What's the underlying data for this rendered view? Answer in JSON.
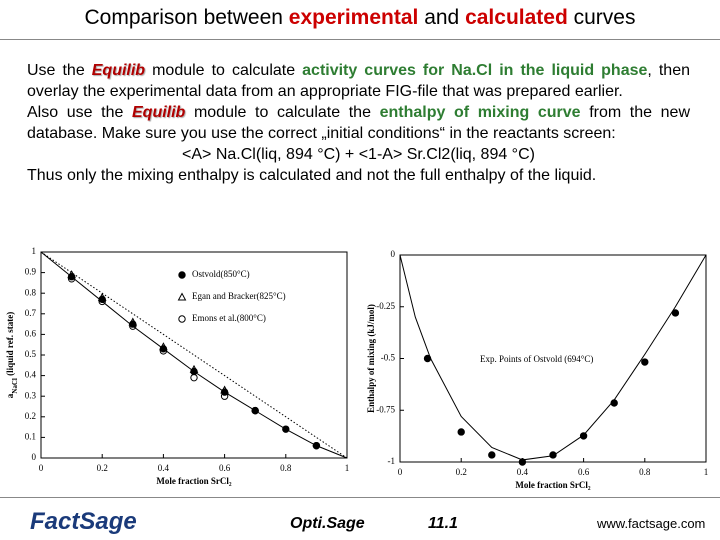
{
  "title": [
    "Comparison between ",
    "experimental",
    " and ",
    "calculated",
    " curves"
  ],
  "body": {
    "p1": [
      "Use the ",
      "Equilib",
      " module to calculate ",
      "activity curves for Na.Cl in the liquid phase",
      ", then overlay the experimental data from an appropriate FIG-file that was prepared earlier."
    ],
    "p2": [
      "Also use the ",
      "Equilib",
      " module to calculate the ",
      "enthalpy of mixing curve",
      " from the new database. Make sure you use the correct „initial conditions“ in the reactants screen:"
    ],
    "p3": "<A> Na.Cl(liq, 894 °C) + <1-A> Sr.Cl2(liq, 894 °C)",
    "p4": "Thus only the mixing enthalpy is calculated and not the full enthalpy of the liquid."
  },
  "chart_data": [
    {
      "type": "scatter",
      "xlabel": "Mole fraction SrCl₂",
      "ylabel": [
        "a",
        "NaCl",
        " (liquid ref. state)"
      ],
      "xlim": [
        0,
        1
      ],
      "ylim": [
        0,
        1
      ],
      "xticks": [
        0,
        0.2,
        0.4,
        0.6,
        0.8,
        1
      ],
      "yticks": [
        0,
        0.1,
        0.2,
        0.3,
        0.4,
        0.5,
        0.6,
        0.7,
        0.8,
        0.9,
        1
      ],
      "series": [
        {
          "name": "Ostvold(850°C)",
          "type": "scatter",
          "marker": "circle-filled",
          "color": "#000000",
          "x": [
            0.1,
            0.2,
            0.3,
            0.4,
            0.5,
            0.6,
            0.7,
            0.8,
            0.9
          ],
          "values": [
            0.88,
            0.77,
            0.65,
            0.53,
            0.42,
            0.32,
            0.23,
            0.14,
            0.06
          ]
        },
        {
          "name": "Egan and Bracker(825°C)",
          "type": "scatter",
          "marker": "triangle",
          "color": "#000000",
          "x": [
            0.1,
            0.2,
            0.3,
            0.4,
            0.5,
            0.6
          ],
          "values": [
            0.89,
            0.78,
            0.66,
            0.54,
            0.43,
            0.33
          ]
        },
        {
          "name": "Emons et al.(800°C)",
          "type": "scatter",
          "marker": "circle-open",
          "color": "#000000",
          "x": [
            0.1,
            0.2,
            0.3,
            0.4,
            0.5,
            0.6,
            0.7,
            0.9
          ],
          "values": [
            0.87,
            0.76,
            0.64,
            0.52,
            0.39,
            0.3,
            0.23,
            0.06
          ]
        },
        {
          "type": "line",
          "dash": false,
          "color": "#000000",
          "x": [
            0,
            0.1,
            0.2,
            0.3,
            0.4,
            0.5,
            0.6,
            0.7,
            0.8,
            0.9,
            1
          ],
          "values": [
            1,
            0.88,
            0.76,
            0.64,
            0.53,
            0.42,
            0.32,
            0.23,
            0.14,
            0.06,
            0
          ]
        },
        {
          "type": "line",
          "dash": true,
          "color": "#000000",
          "x": [
            0,
            1
          ],
          "values": [
            1,
            0
          ]
        }
      ]
    },
    {
      "type": "scatter",
      "xlabel": "Mole fraction SrCl₂",
      "ylabel": [
        "Enthalpy of mixing (kJ/mol)"
      ],
      "xlim": [
        0,
        1
      ],
      "ylim": [
        -1,
        0
      ],
      "xticks": [
        0,
        0.2,
        0.4,
        0.6,
        0.8,
        1
      ],
      "yticks": [
        -1,
        -0.75,
        -0.5,
        -0.25,
        0
      ],
      "annotation": "Exp. Points of Ostvold (694°C)",
      "series": [
        {
          "type": "scatter",
          "marker": "circle-filled",
          "color": "#000000",
          "x": [
            0.09,
            0.2,
            0.3,
            0.4,
            0.5,
            0.6,
            0.7,
            0.8,
            0.9
          ],
          "values": [
            -0.5,
            -0.855,
            -0.966,
            -1,
            -0.966,
            -0.874,
            -0.715,
            -0.517,
            -0.28
          ]
        },
        {
          "type": "line",
          "dash": false,
          "color": "#000000",
          "x": [
            0,
            0.05,
            0.1,
            0.2,
            0.3,
            0.4,
            0.5,
            0.6,
            0.7,
            0.8,
            0.9,
            1
          ],
          "values": [
            0,
            -0.3,
            -0.5,
            -0.78,
            -0.93,
            -0.99,
            -0.97,
            -0.87,
            -0.7,
            -0.48,
            -0.25,
            0
          ]
        }
      ]
    }
  ],
  "footer": {
    "logo": "FactSage",
    "program": "Opti.Sage",
    "number": "11.1",
    "url": "www.factsage.com"
  }
}
